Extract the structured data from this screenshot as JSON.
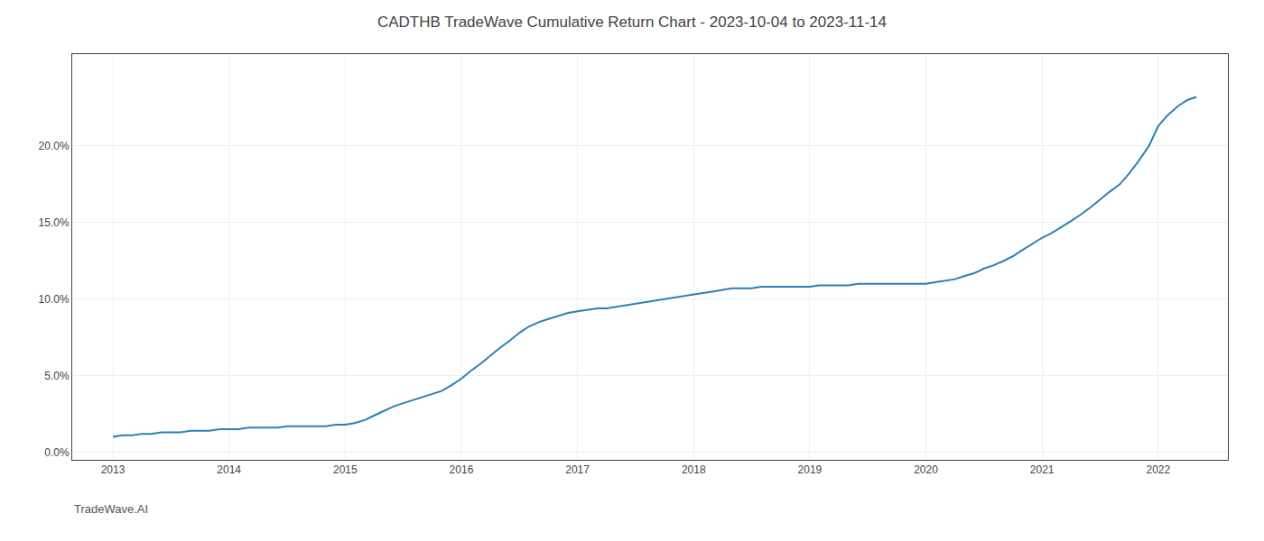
{
  "chart_data": {
    "type": "line",
    "title": "CADTHB TradeWave Cumulative Return Chart - 2023-10-04 to 2023-11-14",
    "annotations": [
      "TradeWave.AI"
    ],
    "color": "#2d7fb5",
    "grid": true,
    "x": [
      2013.0,
      2013.08,
      2013.17,
      2013.25,
      2013.33,
      2013.42,
      2013.5,
      2013.58,
      2013.67,
      2013.75,
      2013.83,
      2013.92,
      2014.0,
      2014.08,
      2014.17,
      2014.25,
      2014.33,
      2014.42,
      2014.5,
      2014.58,
      2014.67,
      2014.75,
      2014.83,
      2014.92,
      2015.0,
      2015.08,
      2015.17,
      2015.25,
      2015.33,
      2015.42,
      2015.5,
      2015.58,
      2015.67,
      2015.75,
      2015.83,
      2015.92,
      2016.0,
      2016.08,
      2016.17,
      2016.25,
      2016.33,
      2016.42,
      2016.5,
      2016.58,
      2016.67,
      2016.75,
      2016.83,
      2016.92,
      2017.0,
      2017.08,
      2017.17,
      2017.25,
      2017.33,
      2017.42,
      2017.5,
      2017.58,
      2017.67,
      2017.75,
      2017.83,
      2017.92,
      2018.0,
      2018.08,
      2018.17,
      2018.25,
      2018.33,
      2018.42,
      2018.5,
      2018.58,
      2018.67,
      2018.75,
      2018.83,
      2018.92,
      2019.0,
      2019.08,
      2019.17,
      2019.25,
      2019.33,
      2019.42,
      2019.5,
      2019.58,
      2019.67,
      2019.75,
      2019.83,
      2019.92,
      2020.0,
      2020.08,
      2020.17,
      2020.25,
      2020.33,
      2020.42,
      2020.5,
      2020.58,
      2020.67,
      2020.75,
      2020.83,
      2020.92,
      2021.0,
      2021.08,
      2021.17,
      2021.25,
      2021.33,
      2021.42,
      2021.5,
      2021.58,
      2021.67,
      2021.75,
      2021.83,
      2021.92,
      2022.0,
      2022.08,
      2022.17,
      2022.25,
      2022.33
    ],
    "values": [
      0.01,
      0.011,
      0.011,
      0.012,
      0.012,
      0.013,
      0.013,
      0.013,
      0.014,
      0.014,
      0.014,
      0.015,
      0.015,
      0.015,
      0.016,
      0.016,
      0.016,
      0.016,
      0.017,
      0.017,
      0.017,
      0.017,
      0.017,
      0.018,
      0.018,
      0.019,
      0.021,
      0.024,
      0.027,
      0.03,
      0.032,
      0.034,
      0.036,
      0.038,
      0.04,
      0.044,
      0.048,
      0.053,
      0.058,
      0.063,
      0.068,
      0.073,
      0.078,
      0.082,
      0.085,
      0.087,
      0.089,
      0.091,
      0.092,
      0.093,
      0.094,
      0.094,
      0.095,
      0.096,
      0.097,
      0.098,
      0.099,
      0.1,
      0.101,
      0.102,
      0.103,
      0.104,
      0.105,
      0.106,
      0.107,
      0.107,
      0.107,
      0.108,
      0.108,
      0.108,
      0.108,
      0.108,
      0.108,
      0.109,
      0.109,
      0.109,
      0.109,
      0.11,
      0.11,
      0.11,
      0.11,
      0.11,
      0.11,
      0.11,
      0.11,
      0.111,
      0.112,
      0.113,
      0.115,
      0.117,
      0.12,
      0.122,
      0.125,
      0.128,
      0.132,
      0.136,
      0.14,
      0.143,
      0.147,
      0.151,
      0.155,
      0.16,
      0.165,
      0.17,
      0.175,
      0.182,
      0.19,
      0.2,
      0.213,
      0.22,
      0.226,
      0.23,
      0.232
    ],
    "xlim": [
      2012.65,
      2022.6
    ],
    "xticks": [
      2013,
      2014,
      2015,
      2016,
      2017,
      2018,
      2019,
      2020,
      2021,
      2022
    ],
    "ylim": [
      -0.005,
      0.26
    ],
    "yticks": [
      {
        "value": 0.0,
        "label": "0.0%"
      },
      {
        "value": 0.05,
        "label": "5.0%"
      },
      {
        "value": 0.1,
        "label": "10.0%"
      },
      {
        "value": 0.15,
        "label": "15.0%"
      },
      {
        "value": 0.2,
        "label": "20.0%"
      }
    ]
  }
}
